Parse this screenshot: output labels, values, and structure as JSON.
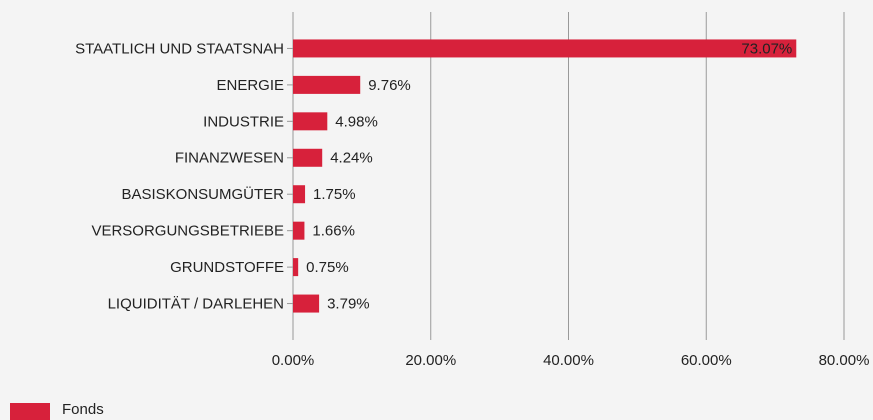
{
  "chart_data": {
    "type": "bar",
    "orientation": "horizontal",
    "categories": [
      "STAATLICH UND STAATSNAH",
      "ENERGIE",
      "INDUSTRIE",
      "FINANZWESEN",
      "BASISKONSUMGÜTER",
      "VERSORGUNGSBETRIEBE",
      "GRUNDSTOFFE",
      "LIQUIDITÄT / DARLEHEN"
    ],
    "series": [
      {
        "name": "Fonds",
        "color": "#d7213b",
        "values": [
          73.07,
          9.76,
          4.98,
          4.24,
          1.75,
          1.66,
          0.75,
          3.79
        ],
        "value_labels": [
          "73.07%",
          "9.76%",
          "4.98%",
          "4.24%",
          "1.75%",
          "1.66%",
          "0.75%",
          "3.79%"
        ]
      }
    ],
    "xlim": [
      0,
      80
    ],
    "xticks": [
      {
        "value": 0,
        "label": "0.00%"
      },
      {
        "value": 20,
        "label": "20.00%"
      },
      {
        "value": 40,
        "label": "40.00%"
      },
      {
        "value": 60,
        "label": "60.00%"
      },
      {
        "value": 80,
        "label": "80.00%"
      }
    ],
    "grid": true,
    "legend": "bottom-left"
  }
}
